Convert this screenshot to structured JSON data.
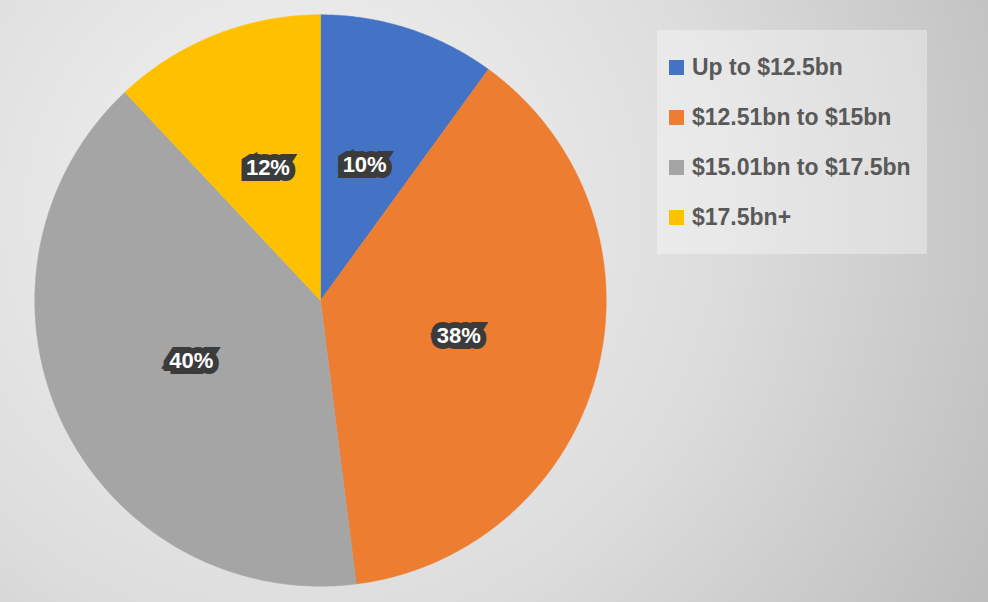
{
  "chart_data": {
    "type": "pie",
    "categories": [
      "Up to $12.5bn",
      "$12.51bn to $15bn",
      "$15.01bn to $17.5bn",
      "$17.5bn+"
    ],
    "values": [
      10,
      38,
      40,
      12
    ],
    "value_labels": [
      "10%",
      "38%",
      "40%",
      "12%"
    ],
    "colors": [
      "#4472c4",
      "#ed7d31",
      "#a5a5a5",
      "#ffc000"
    ],
    "data_labels": true,
    "legend": "right"
  }
}
